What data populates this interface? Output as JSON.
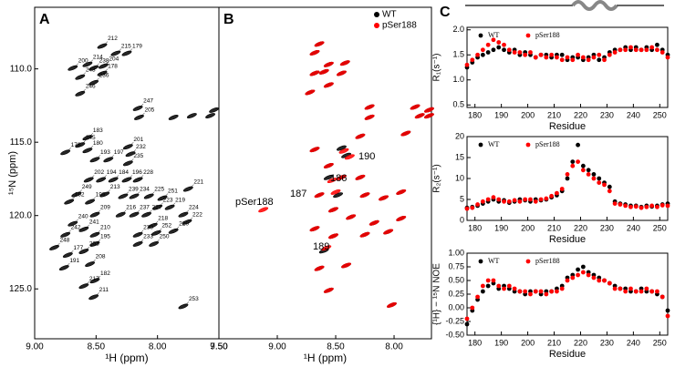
{
  "chart_data": [
    {
      "type": "scatter",
      "panel": "A",
      "xlabel": "¹H (ppm)",
      "ylabel": "¹⁵N (ppm)",
      "xlim": [
        9.0,
        7.5
      ],
      "ylim": [
        105.8,
        128.4
      ],
      "xticks": [
        {
          "value": 9.0,
          "label": "9.00"
        },
        {
          "value": 8.5,
          "label": "8.50"
        },
        {
          "value": 8.0,
          "label": "8.00"
        },
        {
          "value": 7.5,
          "label": "7.50"
        }
      ],
      "yticks": [
        {
          "value": 110,
          "label": "110.0"
        },
        {
          "value": 115,
          "label": "115.0"
        },
        {
          "value": 120,
          "label": "120.0"
        },
        {
          "value": 125,
          "label": "125.0"
        }
      ],
      "series": [
        {
          "color": "#000000",
          "labels": [
            "212",
            "200",
            "214",
            "238",
            "215",
            "179",
            "204",
            "178",
            "243",
            "236",
            "246",
            "247",
            "205",
            "183",
            "245",
            "201",
            "180",
            "176",
            "232",
            "193",
            "197",
            "235",
            "202",
            "194",
            "184",
            "196",
            "228",
            "249",
            "213",
            "239",
            "234",
            "225",
            "251",
            "192",
            "199",
            "223",
            "219",
            "209",
            "216",
            "237",
            "227",
            "221",
            "224",
            "222",
            "240",
            "241",
            "210",
            "218",
            "252",
            "220",
            "230",
            "242",
            "233",
            "250",
            "195",
            "203",
            "248",
            "177",
            "191",
            "208",
            "182",
            "217",
            "211",
            "253",
            null,
            null,
            null,
            null
          ],
          "x": [
            8.45,
            8.69,
            8.57,
            8.52,
            8.34,
            8.25,
            8.44,
            8.45,
            8.63,
            8.52,
            8.63,
            8.16,
            8.15,
            8.57,
            8.63,
            8.24,
            8.57,
            8.75,
            8.22,
            8.51,
            8.4,
            8.24,
            8.56,
            8.46,
            8.36,
            8.25,
            8.16,
            8.66,
            8.43,
            8.28,
            8.19,
            8.07,
            7.96,
            8.72,
            8.55,
            8.0,
            7.9,
            8.51,
            8.3,
            8.19,
            8.09,
            7.75,
            7.79,
            7.76,
            8.69,
            8.6,
            8.51,
            8.04,
            8.01,
            7.87,
            8.16,
            8.75,
            8.16,
            8.03,
            8.51,
            8.6,
            8.84,
            8.73,
            8.76,
            8.55,
            8.51,
            8.6,
            8.52,
            7.79,
            7.72,
            7.57,
            7.54,
            7.87
          ],
          "y": [
            108.44,
            109.94,
            109.69,
            109.94,
            108.94,
            108.94,
            109.81,
            110.31,
            110.56,
            110.94,
            111.69,
            112.69,
            113.31,
            114.69,
            115.19,
            115.31,
            115.56,
            115.69,
            115.81,
            116.19,
            116.19,
            116.44,
            117.56,
            117.56,
            117.56,
            117.56,
            117.56,
            118.56,
            118.56,
            118.69,
            118.69,
            118.69,
            118.81,
            119.06,
            119.06,
            119.44,
            119.44,
            119.94,
            119.94,
            119.94,
            119.94,
            118.19,
            119.94,
            120.44,
            120.56,
            120.94,
            121.31,
            120.69,
            121.19,
            121.06,
            121.31,
            121.31,
            121.94,
            121.94,
            121.94,
            122.44,
            122.19,
            122.69,
            123.56,
            123.31,
            124.44,
            124.81,
            125.56,
            126.19,
            113.19,
            113.19,
            112.81,
            113.31
          ]
        }
      ]
    },
    {
      "type": "scatter",
      "panel": "B",
      "xlabel": "¹H (ppm)",
      "xlim": [
        9.5,
        7.68
      ],
      "ylim": [
        105.8,
        128.4
      ],
      "xticks": [
        {
          "value": 9.5,
          "label": "9.50"
        },
        {
          "value": 9.0,
          "label": "9.00"
        },
        {
          "value": 8.5,
          "label": "8.50"
        },
        {
          "value": 8.0,
          "label": "8.00"
        }
      ],
      "annotations": [
        "190",
        "186",
        "187",
        "pSer188",
        "189"
      ],
      "series": [
        {
          "name": "WT",
          "color": "#000000",
          "x": [
            8.64,
            8.68,
            8.56,
            8.42,
            8.6,
            8.68,
            8.45,
            8.56,
            8.72,
            8.21,
            8.21,
            8.29,
            7.82,
            7.78,
            7.9,
            8.45,
            8.41,
            8.68,
            8.56,
            8.56,
            8.45,
            8.29,
            8.64,
            8.48,
            8.25,
            8.09,
            8.52,
            8.37,
            8.17,
            7.94,
            8.68,
            8.52,
            8.25,
            8.05,
            8.6,
            8.64,
            8.41,
            8.56,
            8.02,
            7.94,
            7.7,
            7.7
          ],
          "y": [
            108.3,
            108.9,
            109.7,
            109.6,
            110.2,
            110.3,
            110.3,
            111.1,
            111.6,
            112.6,
            113.3,
            114.6,
            112.6,
            113.2,
            114.4,
            115.4,
            115.9,
            115.5,
            116.6,
            117.4,
            117.4,
            117.4,
            118.6,
            118.6,
            118.6,
            118.8,
            119.6,
            120.1,
            120.5,
            120.2,
            120.9,
            121.4,
            121.3,
            121.1,
            122.4,
            123.6,
            123.4,
            125.1,
            126.1,
            118.4,
            112.8,
            113.2
          ]
        },
        {
          "name": "pSer188",
          "color": "#ff0000",
          "x": [
            8.64,
            8.68,
            8.56,
            8.42,
            8.6,
            8.68,
            8.45,
            8.56,
            8.72,
            8.21,
            8.21,
            8.29,
            7.82,
            7.78,
            7.9,
            8.43,
            8.38,
            8.68,
            8.56,
            8.53,
            8.45,
            8.29,
            8.64,
            8.5,
            8.25,
            8.09,
            8.52,
            8.37,
            8.17,
            7.94,
            8.68,
            8.52,
            8.25,
            8.05,
            8.58,
            8.64,
            8.41,
            8.56,
            8.02,
            7.94,
            7.7,
            7.7,
            9.12
          ],
          "y": [
            108.3,
            108.9,
            109.7,
            109.6,
            110.2,
            110.3,
            110.3,
            111.1,
            111.6,
            112.6,
            113.3,
            114.6,
            112.6,
            113.2,
            114.4,
            115.6,
            116.0,
            115.5,
            116.6,
            117.6,
            117.4,
            117.4,
            118.6,
            118.4,
            118.6,
            118.8,
            119.6,
            120.1,
            120.5,
            120.2,
            120.9,
            121.4,
            121.3,
            121.1,
            122.2,
            123.6,
            123.4,
            125.1,
            126.1,
            118.4,
            112.8,
            113.2,
            119.6
          ]
        }
      ]
    },
    {
      "type": "scatter",
      "panel": "C",
      "xlabel": "Residue",
      "ylabel": "R₁(s⁻¹)",
      "xlim": [
        177,
        253
      ],
      "ylim": [
        0.45,
        2.05
      ],
      "xticks": [
        180,
        190,
        200,
        210,
        220,
        230,
        240,
        250
      ],
      "yticks": [
        0.5,
        {
          "value": 1,
          "label": "1.0"
        },
        1.5,
        {
          "value": 2,
          "label": "2.0"
        }
      ],
      "x": [
        177,
        179,
        181,
        183,
        185,
        187,
        189,
        191,
        193,
        195,
        197,
        199,
        201,
        203,
        205,
        207,
        209,
        211,
        213,
        215,
        217,
        219,
        221,
        223,
        225,
        227,
        229,
        231,
        233,
        235,
        237,
        239,
        241,
        243,
        245,
        247,
        249,
        251,
        253
      ],
      "series": [
        {
          "name": "WT",
          "color": "#000000",
          "values": [
            1.25,
            1.35,
            1.45,
            1.5,
            1.55,
            1.6,
            1.65,
            1.6,
            1.55,
            1.6,
            1.5,
            1.55,
            1.5,
            1.45,
            1.5,
            1.5,
            1.45,
            1.5,
            1.5,
            1.4,
            1.45,
            1.45,
            1.4,
            1.45,
            1.5,
            1.4,
            1.45,
            1.55,
            1.6,
            1.6,
            1.65,
            1.6,
            1.65,
            1.6,
            1.65,
            1.6,
            1.7,
            1.6,
            1.5
          ]
        },
        {
          "name": "pSer188",
          "color": "#ff0000",
          "values": [
            1.3,
            1.4,
            1.5,
            1.6,
            1.7,
            1.8,
            1.75,
            1.7,
            1.6,
            1.55,
            1.55,
            1.5,
            1.55,
            1.45,
            1.5,
            1.45,
            1.5,
            1.45,
            1.4,
            1.45,
            1.4,
            1.5,
            1.45,
            1.4,
            1.45,
            1.5,
            1.4,
            1.5,
            1.55,
            1.6,
            1.6,
            1.65,
            1.6,
            1.6,
            1.6,
            1.65,
            1.6,
            1.55,
            1.45
          ]
        }
      ]
    },
    {
      "type": "scatter",
      "xlabel": "Residue",
      "ylabel": "R₂(s⁻¹)",
      "xlim": [
        177,
        253
      ],
      "ylim": [
        0,
        20
      ],
      "xticks": [
        180,
        190,
        200,
        210,
        220,
        230,
        240,
        250
      ],
      "yticks": [
        0,
        5,
        10,
        15,
        20
      ],
      "x": [
        177,
        179,
        181,
        183,
        185,
        187,
        189,
        191,
        193,
        195,
        197,
        199,
        201,
        203,
        205,
        207,
        209,
        211,
        213,
        215,
        217,
        219,
        221,
        223,
        225,
        227,
        229,
        231,
        233,
        235,
        237,
        239,
        241,
        243,
        245,
        247,
        249,
        251,
        253
      ],
      "series": [
        {
          "name": "WT",
          "color": "#000000",
          "values": [
            3,
            3.2,
            3.5,
            4,
            4.5,
            5,
            4.5,
            4.8,
            4.2,
            4.5,
            5,
            4.8,
            4.5,
            5,
            4.8,
            5,
            5.5,
            6,
            7,
            10,
            14,
            18,
            13,
            12,
            11,
            10,
            9,
            8,
            4.5,
            4,
            3.8,
            3.5,
            3.5,
            3.2,
            3.5,
            3.3,
            3.5,
            3.8,
            4
          ]
        },
        {
          "name": "pSer188",
          "color": "#ff0000",
          "values": [
            2.8,
            3,
            3.8,
            4.5,
            5,
            5.5,
            5,
            4.5,
            4.5,
            4.8,
            4.5,
            5,
            5,
            4.5,
            5,
            5.2,
            5.8,
            6.5,
            7.5,
            11,
            13,
            14,
            12,
            11,
            10,
            9,
            8.5,
            7,
            4,
            3.8,
            3.5,
            3.2,
            3.3,
            3,
            3.2,
            3.5,
            3.2,
            3.6,
            3.5
          ]
        }
      ]
    },
    {
      "type": "scatter",
      "xlabel": "Residue",
      "ylabel": "{¹H} − ¹⁵N NOE",
      "xlim": [
        177,
        253
      ],
      "ylim": [
        -0.5,
        1.0
      ],
      "xticks": [
        180,
        190,
        200,
        210,
        220,
        230,
        240,
        250
      ],
      "yticks": [
        {
          "value": -0.5,
          "label": "-0.50"
        },
        {
          "value": -0.25,
          "label": "-0.25"
        },
        {
          "value": 0,
          "label": "0.00"
        },
        {
          "value": 0.25,
          "label": "0.25"
        },
        {
          "value": 0.5,
          "label": "0.50"
        },
        {
          "value": 0.75,
          "label": "0.75"
        },
        {
          "value": 1,
          "label": "1.00"
        }
      ],
      "x": [
        177,
        179,
        181,
        183,
        185,
        187,
        189,
        191,
        193,
        195,
        197,
        199,
        201,
        203,
        205,
        207,
        209,
        211,
        213,
        215,
        217,
        219,
        221,
        223,
        225,
        227,
        229,
        231,
        233,
        235,
        237,
        239,
        241,
        243,
        245,
        247,
        249,
        251,
        253
      ],
      "series": [
        {
          "name": "WT",
          "color": "#000000",
          "values": [
            -0.3,
            -0.05,
            0.15,
            0.3,
            0.4,
            0.45,
            0.35,
            0.4,
            0.35,
            0.3,
            0.3,
            0.25,
            0.3,
            0.3,
            0.25,
            0.3,
            0.3,
            0.35,
            0.4,
            0.55,
            0.6,
            0.7,
            0.75,
            0.65,
            0.6,
            0.55,
            0.5,
            0.45,
            0.4,
            0.35,
            0.35,
            0.3,
            0.3,
            0.35,
            0.3,
            0.3,
            0.25,
            0.2,
            -0.05
          ]
        },
        {
          "name": "pSer188",
          "color": "#ff0000",
          "values": [
            -0.2,
            0.0,
            0.2,
            0.4,
            0.5,
            0.5,
            0.4,
            0.35,
            0.4,
            0.35,
            0.3,
            0.3,
            0.25,
            0.3,
            0.3,
            0.25,
            0.3,
            0.3,
            0.35,
            0.5,
            0.55,
            0.6,
            0.65,
            0.6,
            0.55,
            0.5,
            0.5,
            0.45,
            0.35,
            0.35,
            0.3,
            0.35,
            0.3,
            0.3,
            0.35,
            0.3,
            0.3,
            0.2,
            -0.15
          ]
        }
      ]
    }
  ]
}
